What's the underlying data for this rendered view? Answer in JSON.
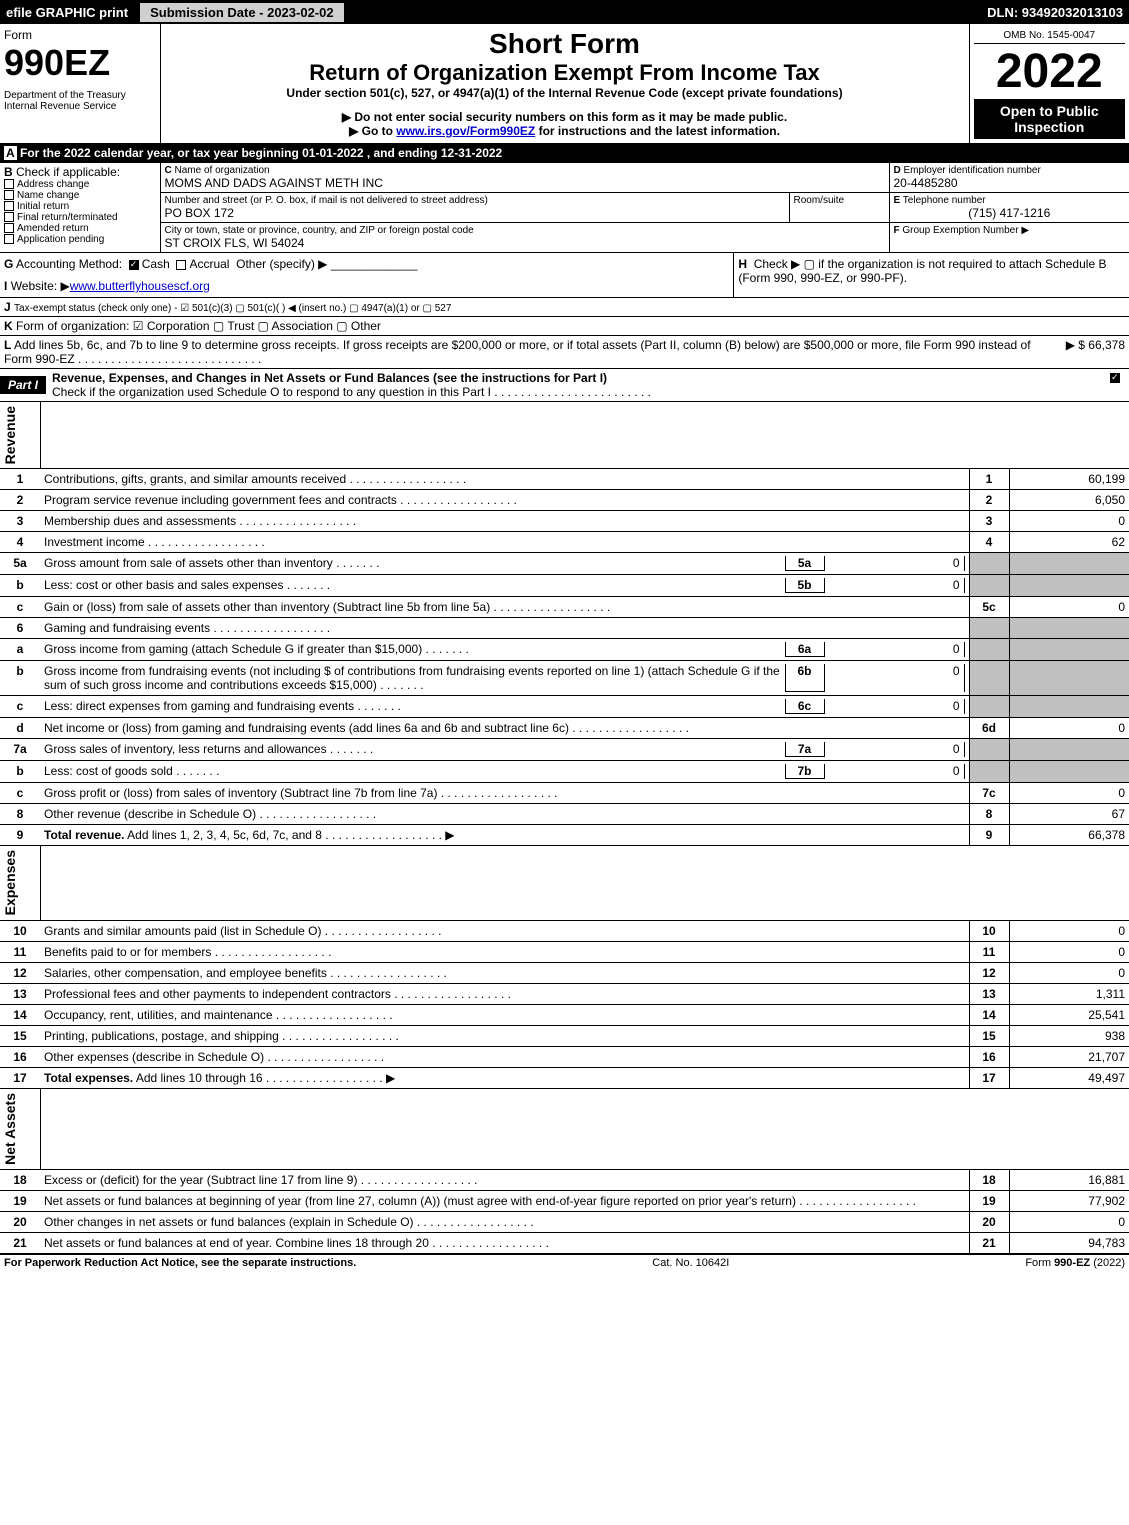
{
  "topbar": {
    "efile": "efile GRAPHIC print",
    "sub_date": "Submission Date - 2023-02-02",
    "dln": "DLN: 93492032013103"
  },
  "header": {
    "form_label": "Form",
    "form_num": "990EZ",
    "dept": "Department of the Treasury\nInternal Revenue Service",
    "title1": "Short Form",
    "title2": "Return of Organization Exempt From Income Tax",
    "under": "Under section 501(c), 527, or 4947(a)(1) of the Internal Revenue Code (except private foundations)",
    "arrow1": "▶ Do not enter social security numbers on this form as it may be made public.",
    "arrow2_pre": "▶ Go to ",
    "arrow2_link": "www.irs.gov/Form990EZ",
    "arrow2_post": " for instructions and the latest information.",
    "omb": "OMB No. 1545-0047",
    "year": "2022",
    "open": "Open to Public Inspection"
  },
  "A": {
    "text": "For the 2022 calendar year, or tax year beginning 01-01-2022 , and ending 12-31-2022"
  },
  "B": {
    "label": "Check if applicable:",
    "opts": [
      "Address change",
      "Name change",
      "Initial return",
      "Final return/terminated",
      "Amended return",
      "Application pending"
    ]
  },
  "C": {
    "name_lbl": "Name of organization",
    "name": "MOMS AND DADS AGAINST METH INC",
    "street_lbl": "Number and street (or P. O. box, if mail is not delivered to street address)",
    "room_lbl": "Room/suite",
    "street": "PO BOX 172",
    "city_lbl": "City or town, state or province, country, and ZIP or foreign postal code",
    "city": "ST CROIX FLS, WI  54024"
  },
  "D": {
    "lbl": "Employer identification number",
    "val": "20-4485280"
  },
  "E": {
    "lbl": "Telephone number",
    "val": "(715) 417-1216"
  },
  "F": {
    "lbl": "Group Exemption Number ▶",
    "val": ""
  },
  "G": {
    "label": "Accounting Method:",
    "cash": "Cash",
    "accrual": "Accrual",
    "other": "Other (specify) ▶"
  },
  "H": {
    "text": "Check ▶   ▢  if the organization is not required to attach Schedule B (Form 990, 990-EZ, or 990-PF)."
  },
  "I": {
    "lbl": "Website: ▶",
    "val": "www.butterflyhousescf.org"
  },
  "J": {
    "text": "Tax-exempt status (check only one) - ☑ 501(c)(3)  ▢ 501(c)(  ) ◀ (insert no.)  ▢ 4947(a)(1) or  ▢ 527"
  },
  "K": {
    "text": "Form of organization:   ☑ Corporation   ▢ Trust   ▢ Association   ▢ Other"
  },
  "L": {
    "text": "Add lines 5b, 6c, and 7b to line 9 to determine gross receipts. If gross receipts are $200,000 or more, or if total assets (Part II, column (B) below) are $500,000 or more, file Form 990 instead of Form 990-EZ",
    "amt": "▶ $ 66,378"
  },
  "partI": {
    "label": "Part I",
    "title": "Revenue, Expenses, and Changes in Net Assets or Fund Balances (see the instructions for Part I)",
    "check": "Check if the organization used Schedule O to respond to any question in this Part I"
  },
  "sections": {
    "revenue": "Revenue",
    "expenses": "Expenses",
    "netassets": "Net Assets"
  },
  "lines": [
    {
      "n": "1",
      "d": "Contributions, gifts, grants, and similar amounts received",
      "rn": "1",
      "amt": "60,199"
    },
    {
      "n": "2",
      "d": "Program service revenue including government fees and contracts",
      "rn": "2",
      "amt": "6,050"
    },
    {
      "n": "3",
      "d": "Membership dues and assessments",
      "rn": "3",
      "amt": "0"
    },
    {
      "n": "4",
      "d": "Investment income",
      "rn": "4",
      "amt": "62"
    },
    {
      "n": "5a",
      "d": "Gross amount from sale of assets other than inventory",
      "sub": "5a",
      "subamt": "0",
      "shaded": true
    },
    {
      "n": "b",
      "d": "Less: cost or other basis and sales expenses",
      "sub": "5b",
      "subamt": "0",
      "shaded": true
    },
    {
      "n": "c",
      "d": "Gain or (loss) from sale of assets other than inventory (Subtract line 5b from line 5a)",
      "rn": "5c",
      "amt": "0"
    },
    {
      "n": "6",
      "d": "Gaming and fundraising events",
      "shaded": true
    },
    {
      "n": "a",
      "d": "Gross income from gaming (attach Schedule G if greater than $15,000)",
      "sub": "6a",
      "subamt": "0",
      "shaded": true
    },
    {
      "n": "b",
      "d": "Gross income from fundraising events (not including $                    of contributions from fundraising events reported on line 1) (attach Schedule G if the sum of such gross income and contributions exceeds $15,000)",
      "sub": "6b",
      "subamt": "0",
      "shaded": true
    },
    {
      "n": "c",
      "d": "Less: direct expenses from gaming and fundraising events",
      "sub": "6c",
      "subamt": "0",
      "shaded": true
    },
    {
      "n": "d",
      "d": "Net income or (loss) from gaming and fundraising events (add lines 6a and 6b and subtract line 6c)",
      "rn": "6d",
      "amt": "0"
    },
    {
      "n": "7a",
      "d": "Gross sales of inventory, less returns and allowances",
      "sub": "7a",
      "subamt": "0",
      "shaded": true
    },
    {
      "n": "b",
      "d": "Less: cost of goods sold",
      "sub": "7b",
      "subamt": "0",
      "shaded": true
    },
    {
      "n": "c",
      "d": "Gross profit or (loss) from sales of inventory (Subtract line 7b from line 7a)",
      "rn": "7c",
      "amt": "0"
    },
    {
      "n": "8",
      "d": "Other revenue (describe in Schedule O)",
      "rn": "8",
      "amt": "67"
    },
    {
      "n": "9",
      "d": "Total revenue. Add lines 1, 2, 3, 4, 5c, 6d, 7c, and 8",
      "rn": "9",
      "amt": "66,378",
      "bold": true,
      "arrow": true
    }
  ],
  "exp_lines": [
    {
      "n": "10",
      "d": "Grants and similar amounts paid (list in Schedule O)",
      "rn": "10",
      "amt": "0"
    },
    {
      "n": "11",
      "d": "Benefits paid to or for members",
      "rn": "11",
      "amt": "0"
    },
    {
      "n": "12",
      "d": "Salaries, other compensation, and employee benefits",
      "rn": "12",
      "amt": "0"
    },
    {
      "n": "13",
      "d": "Professional fees and other payments to independent contractors",
      "rn": "13",
      "amt": "1,311"
    },
    {
      "n": "14",
      "d": "Occupancy, rent, utilities, and maintenance",
      "rn": "14",
      "amt": "25,541"
    },
    {
      "n": "15",
      "d": "Printing, publications, postage, and shipping",
      "rn": "15",
      "amt": "938"
    },
    {
      "n": "16",
      "d": "Other expenses (describe in Schedule O)",
      "rn": "16",
      "amt": "21,707"
    },
    {
      "n": "17",
      "d": "Total expenses. Add lines 10 through 16",
      "rn": "17",
      "amt": "49,497",
      "bold": true,
      "arrow": true
    }
  ],
  "net_lines": [
    {
      "n": "18",
      "d": "Excess or (deficit) for the year (Subtract line 17 from line 9)",
      "rn": "18",
      "amt": "16,881"
    },
    {
      "n": "19",
      "d": "Net assets or fund balances at beginning of year (from line 27, column (A)) (must agree with end-of-year figure reported on prior year's return)",
      "rn": "19",
      "amt": "77,902"
    },
    {
      "n": "20",
      "d": "Other changes in net assets or fund balances (explain in Schedule O)",
      "rn": "20",
      "amt": "0"
    },
    {
      "n": "21",
      "d": "Net assets or fund balances at end of year. Combine lines 18 through 20",
      "rn": "21",
      "amt": "94,783"
    }
  ],
  "footer": {
    "left": "For Paperwork Reduction Act Notice, see the separate instructions.",
    "mid": "Cat. No. 10642I",
    "right": "Form 990-EZ (2022)"
  }
}
